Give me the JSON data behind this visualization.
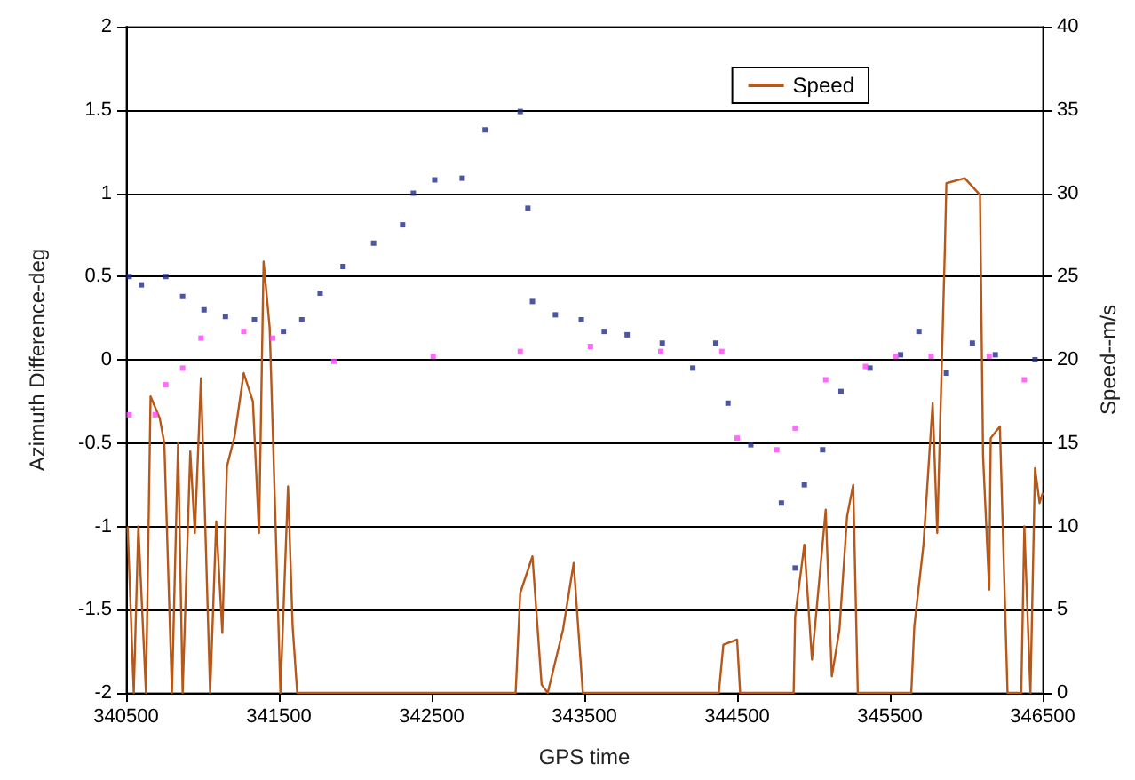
{
  "chart_data": {
    "type": "scatter",
    "xlabel": "GPS time",
    "ylabel": "Azimuth Difference-deg",
    "y2label": "Speed--m/s",
    "xlim": [
      340500,
      346500
    ],
    "xticks": [
      340500,
      341500,
      342500,
      343500,
      344500,
      345500,
      346500
    ],
    "ylim": [
      -2,
      2
    ],
    "yticks": [
      -2,
      -1.5,
      -1,
      -0.5,
      0,
      0.5,
      1,
      1.5,
      2
    ],
    "y2lim": [
      0,
      40
    ],
    "y2ticks": [
      0,
      5,
      10,
      15,
      20,
      25,
      30,
      35,
      40
    ],
    "grid": "y",
    "legend": "top right",
    "series": [
      {
        "marker": "square",
        "color": "#1f2a8a",
        "x": [
          340520,
          340600,
          340760,
          340870,
          341010,
          341150,
          341340,
          341530,
          341650,
          341770,
          341920,
          342120,
          342310,
          342380,
          342520,
          342700,
          342850,
          343080,
          343130,
          343160,
          343310,
          343480,
          343630,
          343780,
          344010,
          344210,
          344360,
          344440,
          344590,
          344790,
          344880,
          344940,
          345060,
          345180,
          345370,
          345570,
          345690,
          345870,
          346040,
          346190,
          346450
        ],
        "values": [
          0.5,
          0.45,
          0.5,
          0.38,
          0.3,
          0.26,
          0.24,
          0.17,
          0.24,
          0.4,
          0.56,
          0.7,
          0.81,
          1.0,
          1.08,
          1.09,
          1.38,
          1.49,
          0.91,
          0.35,
          0.27,
          0.24,
          0.17,
          0.15,
          0.1,
          -0.05,
          0.1,
          -0.26,
          -0.51,
          -0.86,
          -1.25,
          -0.75,
          -0.54,
          -0.19,
          -0.05,
          0.03,
          0.17,
          -0.08,
          0.1,
          0.03,
          0.0
        ]
      },
      {
        "marker": "square",
        "color": "#ff44ff",
        "x": [
          340520,
          340690,
          340760,
          340870,
          340990,
          341270,
          341460,
          341860,
          342510,
          343080,
          343540,
          344000,
          344400,
          344500,
          344760,
          344880,
          345080,
          345340,
          345540,
          345770,
          346150,
          346380
        ],
        "values": [
          -0.33,
          -0.33,
          -0.15,
          -0.05,
          0.13,
          0.17,
          0.13,
          -0.01,
          0.02,
          0.05,
          0.08,
          0.05,
          0.05,
          -0.47,
          -0.54,
          -0.41,
          -0.12,
          -0.04,
          0.02,
          0.02,
          0.02,
          -0.12
        ]
      },
      {
        "type": "line",
        "marker": "none",
        "axis": "y2",
        "name": "Speed",
        "color": "#b5581a",
        "x": [
          340510,
          340550,
          340580,
          340630,
          340660,
          340720,
          340750,
          340800,
          340840,
          340870,
          340920,
          340950,
          340990,
          341050,
          341090,
          341130,
          341160,
          341210,
          341270,
          341330,
          341370,
          341400,
          341440,
          341480,
          341510,
          341560,
          341590,
          341620,
          343050,
          343080,
          343160,
          343220,
          343260,
          343360,
          343430,
          343490,
          344380,
          344410,
          344500,
          344520,
          344870,
          344880,
          344940,
          344990,
          345080,
          345120,
          345170,
          345220,
          345260,
          345290,
          345640,
          345660,
          345720,
          345780,
          345810,
          345860,
          345870,
          345990,
          346090,
          346110,
          346150,
          346160,
          346220,
          346270,
          346360,
          346380,
          346420,
          346450,
          346480,
          346500
        ],
        "values": [
          10,
          0,
          10,
          0,
          17.8,
          16.5,
          15,
          0,
          15,
          0,
          14.5,
          9.6,
          18.9,
          0,
          10.3,
          3.6,
          13.6,
          15.4,
          19.2,
          17.5,
          9.6,
          25.9,
          21.9,
          9.6,
          0,
          12.4,
          4,
          0,
          0,
          6,
          8.2,
          0.5,
          0,
          3.8,
          7.8,
          0,
          0,
          2.9,
          3.2,
          0,
          0,
          4.6,
          8.9,
          2,
          11,
          1,
          3.8,
          10.6,
          12.5,
          0,
          0,
          4,
          8.9,
          17.4,
          9.6,
          26.7,
          30.6,
          30.9,
          29.9,
          14.2,
          6.2,
          15.3,
          16,
          0,
          0,
          10,
          0,
          13.5,
          11.4,
          12
        ]
      }
    ]
  }
}
